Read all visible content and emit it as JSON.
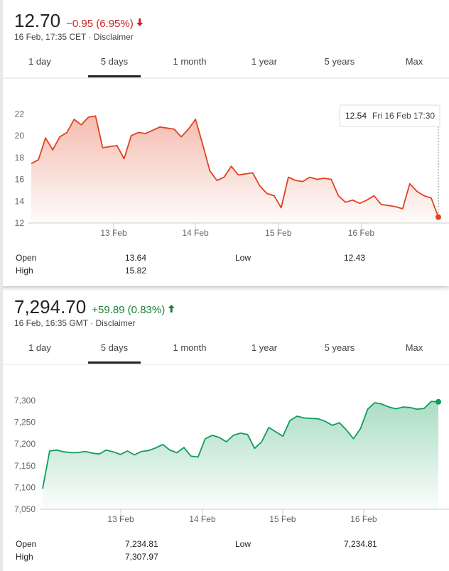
{
  "widgets": [
    {
      "price": "12.70",
      "change": "−0.95 (6.95%)",
      "direction": "down",
      "change_color": "#c5221f",
      "time": "16 Feb, 17:35 CET · Disclaimer",
      "tabs": [
        "1 day",
        "5 days",
        "1 month",
        "1 year",
        "5 years",
        "Max"
      ],
      "active_tab": 1,
      "stats": [
        [
          "Open",
          "13.64",
          "Low",
          "12.43"
        ],
        [
          "High",
          "15.82"
        ]
      ]
    },
    {
      "price": "7,294.70",
      "change": "+59.89 (0.83%)",
      "direction": "up",
      "change_color": "#188038",
      "time": "16 Feb, 16:35 GMT · Disclaimer",
      "tabs": [
        "1 day",
        "5 days",
        "1 month",
        "1 year",
        "5 years",
        "Max"
      ],
      "active_tab": 1,
      "stats": [
        [
          "Open",
          "7,234.81",
          "Low",
          "7,234.81"
        ],
        [
          "High",
          "7,307.97"
        ]
      ]
    }
  ],
  "chart_data": [
    {
      "type": "line",
      "color": "#e0421f",
      "values": [
        17.45,
        17.8,
        19.8,
        18.7,
        19.9,
        20.3,
        21.5,
        21.0,
        21.7,
        21.8,
        18.9,
        19.0,
        19.1,
        17.9,
        20.0,
        20.3,
        20.2,
        20.5,
        20.8,
        20.7,
        20.6,
        19.9,
        20.6,
        21.5,
        19.2,
        16.8,
        15.9,
        16.2,
        17.2,
        16.4,
        16.5,
        16.6,
        15.4,
        14.7,
        14.5,
        13.4,
        16.2,
        15.9,
        15.8,
        16.2,
        16.0,
        16.1,
        16.0,
        14.5,
        13.9,
        14.1,
        13.8,
        14.1,
        14.5,
        13.7,
        13.6,
        13.5,
        13.3,
        15.6,
        14.9,
        14.5,
        14.3,
        12.54
      ],
      "xlim": [
        0,
        57
      ],
      "xticks": [
        {
          "value": 11.54,
          "label": "13 Feb"
        },
        {
          "value": 22.98,
          "label": "14 Feb"
        },
        {
          "value": 34.6,
          "label": "15 Feb"
        },
        {
          "value": 46.2,
          "label": "16 Feb"
        }
      ],
      "ylim": [
        12,
        23
      ],
      "yticks": [
        12,
        14,
        16,
        18,
        20,
        22
      ],
      "grid": false,
      "tooltip": {
        "value": 12.54,
        "label": "Fri 16 Feb 17:30"
      }
    },
    {
      "type": "line",
      "color": "#0f9d58",
      "values": [
        7097,
        7184,
        7186,
        7182,
        7180,
        7180,
        7183,
        7179,
        7177,
        7186,
        7182,
        7176,
        7184,
        7175,
        7183,
        7185,
        7191,
        7199,
        7186,
        7180,
        7192,
        7172,
        7170,
        7212,
        7220,
        7215,
        7205,
        7220,
        7225,
        7222,
        7190,
        7205,
        7238,
        7228,
        7218,
        7254,
        7264,
        7260,
        7259,
        7258,
        7252,
        7243,
        7249,
        7232,
        7212,
        7236,
        7280,
        7295,
        7292,
        7285,
        7281,
        7285,
        7284,
        7280,
        7282,
        7298,
        7297
      ],
      "xlim": [
        0,
        56
      ],
      "xticks": [
        {
          "value": 11.06,
          "label": "13 Feb"
        },
        {
          "value": 22.61,
          "label": "14 Feb"
        },
        {
          "value": 33.97,
          "label": "15 Feb"
        },
        {
          "value": 45.43,
          "label": "16 Feb"
        }
      ],
      "ylim": [
        7050,
        7330
      ],
      "yticks": [
        {
          "value": 7050,
          "label": "7,050"
        },
        {
          "value": 7100,
          "label": "7,100"
        },
        {
          "value": 7150,
          "label": "7,150"
        },
        {
          "value": 7200,
          "label": "7,200"
        },
        {
          "value": 7250,
          "label": "7,250"
        },
        {
          "value": 7300,
          "label": "7,300"
        }
      ],
      "grid": false
    }
  ]
}
